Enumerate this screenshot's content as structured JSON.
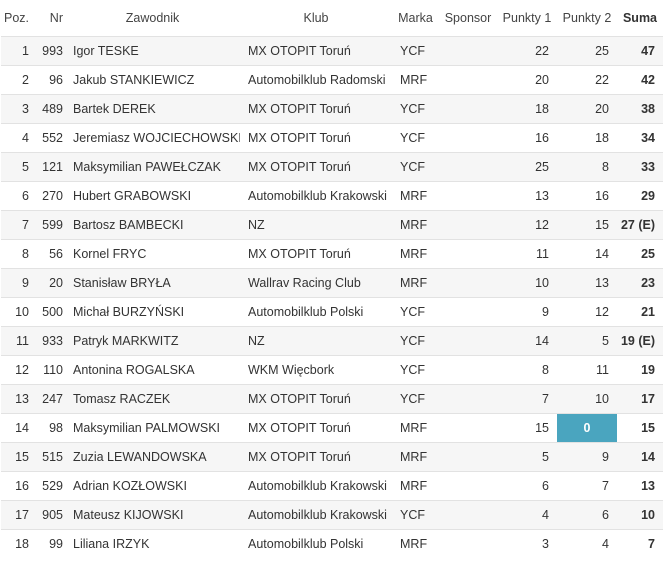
{
  "headers": {
    "poz": "Poz.",
    "nr": "Nr",
    "rider": "Zawodnik",
    "club": "Klub",
    "brand": "Marka",
    "sponsor": "Sponsor",
    "points1": "Punkty 1",
    "points2": "Punkty 2",
    "sum": "Suma"
  },
  "rows": [
    {
      "poz": "1",
      "nr": "993",
      "rider": "Igor TESKE",
      "club": "MX OTOPIT Toruń",
      "brand": "YCF",
      "sponsor": "",
      "p1": "22",
      "p2": "25",
      "sum": "47"
    },
    {
      "poz": "2",
      "nr": "96",
      "rider": "Jakub STANKIEWICZ",
      "club": "Automobilklub Radomski",
      "brand": "MRF",
      "sponsor": "",
      "p1": "20",
      "p2": "22",
      "sum": "42"
    },
    {
      "poz": "3",
      "nr": "489",
      "rider": "Bartek DEREK",
      "club": "MX OTOPIT Toruń",
      "brand": "YCF",
      "sponsor": "",
      "p1": "18",
      "p2": "20",
      "sum": "38"
    },
    {
      "poz": "4",
      "nr": "552",
      "rider": "Jeremiasz WOJCIECHOWSKI",
      "club": "MX OTOPIT Toruń",
      "brand": "YCF",
      "sponsor": "",
      "p1": "16",
      "p2": "18",
      "sum": "34"
    },
    {
      "poz": "5",
      "nr": "121",
      "rider": "Maksymilian PAWEŁCZAK",
      "club": "MX OTOPIT Toruń",
      "brand": "YCF",
      "sponsor": "",
      "p1": "25",
      "p2": "8",
      "sum": "33"
    },
    {
      "poz": "6",
      "nr": "270",
      "rider": "Hubert GRABOWSKI",
      "club": "Automobilklub Krakowski",
      "brand": "MRF",
      "sponsor": "",
      "p1": "13",
      "p2": "16",
      "sum": "29"
    },
    {
      "poz": "7",
      "nr": "599",
      "rider": "Bartosz BAMBECKI",
      "club": "NZ",
      "brand": "MRF",
      "sponsor": "",
      "p1": "12",
      "p2": "15",
      "sum": "27 (E)"
    },
    {
      "poz": "8",
      "nr": "56",
      "rider": "Kornel FRYC",
      "club": "MX OTOPIT Toruń",
      "brand": "MRF",
      "sponsor": "",
      "p1": "11",
      "p2": "14",
      "sum": "25"
    },
    {
      "poz": "9",
      "nr": "20",
      "rider": "Stanisław BRYŁA",
      "club": "Wallrav Racing Club",
      "brand": "MRF",
      "sponsor": "",
      "p1": "10",
      "p2": "13",
      "sum": "23"
    },
    {
      "poz": "10",
      "nr": "500",
      "rider": "Michał BURZYŃSKI",
      "club": "Automobilklub Polski",
      "brand": "YCF",
      "sponsor": "",
      "p1": "9",
      "p2": "12",
      "sum": "21"
    },
    {
      "poz": "11",
      "nr": "933",
      "rider": "Patryk MARKWITZ",
      "club": "NZ",
      "brand": "YCF",
      "sponsor": "",
      "p1": "14",
      "p2": "5",
      "sum": "19 (E)"
    },
    {
      "poz": "12",
      "nr": "110",
      "rider": "Antonina ROGALSKA",
      "club": "WKM Więcbork",
      "brand": "YCF",
      "sponsor": "",
      "p1": "8",
      "p2": "11",
      "sum": "19"
    },
    {
      "poz": "13",
      "nr": "247",
      "rider": "Tomasz RACZEK",
      "club": "MX OTOPIT Toruń",
      "brand": "YCF",
      "sponsor": "",
      "p1": "7",
      "p2": "10",
      "sum": "17"
    },
    {
      "poz": "14",
      "nr": "98",
      "rider": "Maksymilian PALMOWSKI",
      "club": "MX OTOPIT Toruń",
      "brand": "MRF",
      "sponsor": "",
      "p1": "15",
      "p2": "0",
      "sum": "15",
      "highlight_p2": true
    },
    {
      "poz": "15",
      "nr": "515",
      "rider": "Zuzia LEWANDOWSKA",
      "club": "MX OTOPIT Toruń",
      "brand": "MRF",
      "sponsor": "",
      "p1": "5",
      "p2": "9",
      "sum": "14"
    },
    {
      "poz": "16",
      "nr": "529",
      "rider": "Adrian KOZŁOWSKI",
      "club": "Automobilklub Krakowski",
      "brand": "MRF",
      "sponsor": "",
      "p1": "6",
      "p2": "7",
      "sum": "13"
    },
    {
      "poz": "17",
      "nr": "905",
      "rider": "Mateusz KIJOWSKI",
      "club": "Automobilklub Krakowski",
      "brand": "YCF",
      "sponsor": "",
      "p1": "4",
      "p2": "6",
      "sum": "10"
    },
    {
      "poz": "18",
      "nr": "99",
      "rider": "Liliana IRZYK",
      "club": "Automobilklub Polski",
      "brand": "MRF",
      "sponsor": "",
      "p1": "3",
      "p2": "4",
      "sum": "7"
    }
  ],
  "colors": {
    "highlight": "#4aa5bf",
    "row_alt": "#f6f6f6",
    "border": "#e2e2e2"
  }
}
